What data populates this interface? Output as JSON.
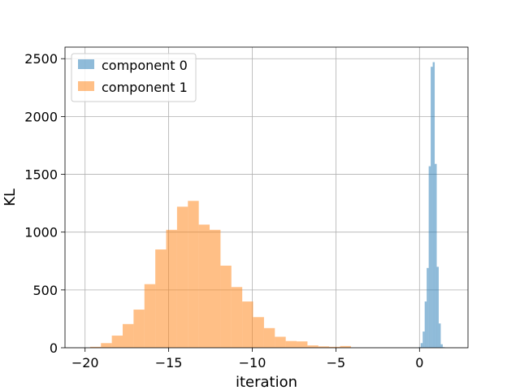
{
  "chart_data": {
    "type": "bar",
    "subtype": "histogram",
    "xlabel": "iteration",
    "ylabel": "KL",
    "xlim": [
      -21.2,
      2.9
    ],
    "ylim": [
      0,
      2600
    ],
    "xticks": [
      -20,
      -15,
      -10,
      -5,
      0
    ],
    "xtick_labels": [
      "−20",
      "−15",
      "−10",
      "−5",
      "0"
    ],
    "yticks": [
      0,
      500,
      1000,
      1500,
      2000,
      2500
    ],
    "ytick_labels": [
      "0",
      "500",
      "1000",
      "1500",
      "2000",
      "2500"
    ],
    "grid": true,
    "legend_position": "top-left",
    "series": [
      {
        "name": "component 0",
        "color": "#1f77b4",
        "alpha": 0.5,
        "bins": [
          {
            "x0": -0.05,
            "x1": 0.07,
            "count": 5
          },
          {
            "x0": 0.07,
            "x1": 0.19,
            "count": 40
          },
          {
            "x0": 0.19,
            "x1": 0.31,
            "count": 140
          },
          {
            "x0": 0.31,
            "x1": 0.43,
            "count": 400
          },
          {
            "x0": 0.43,
            "x1": 0.55,
            "count": 690
          },
          {
            "x0": 0.55,
            "x1": 0.67,
            "count": 1570
          },
          {
            "x0": 0.67,
            "x1": 0.79,
            "count": 2430
          },
          {
            "x0": 0.79,
            "x1": 0.91,
            "count": 2470
          },
          {
            "x0": 0.91,
            "x1": 1.03,
            "count": 1590
          },
          {
            "x0": 1.03,
            "x1": 1.15,
            "count": 700
          },
          {
            "x0": 1.15,
            "x1": 1.27,
            "count": 210
          },
          {
            "x0": 1.27,
            "x1": 1.39,
            "count": 30
          },
          {
            "x0": 1.39,
            "x1": 1.51,
            "count": 5
          }
        ]
      },
      {
        "name": "component 1",
        "color": "#ff7f0e",
        "alpha": 0.5,
        "bins": [
          {
            "x0": -19.7,
            "x1": -19.05,
            "count": 8
          },
          {
            "x0": -19.05,
            "x1": -18.4,
            "count": 40
          },
          {
            "x0": -18.4,
            "x1": -17.75,
            "count": 105
          },
          {
            "x0": -17.75,
            "x1": -17.1,
            "count": 205
          },
          {
            "x0": -17.1,
            "x1": -16.45,
            "count": 330
          },
          {
            "x0": -16.45,
            "x1": -15.8,
            "count": 550
          },
          {
            "x0": -15.8,
            "x1": -15.15,
            "count": 850
          },
          {
            "x0": -15.15,
            "x1": -14.5,
            "count": 1020
          },
          {
            "x0": -14.5,
            "x1": -13.85,
            "count": 1220
          },
          {
            "x0": -13.85,
            "x1": -13.2,
            "count": 1270
          },
          {
            "x0": -13.2,
            "x1": -12.55,
            "count": 1065
          },
          {
            "x0": -12.55,
            "x1": -11.9,
            "count": 1020
          },
          {
            "x0": -11.9,
            "x1": -11.25,
            "count": 710
          },
          {
            "x0": -11.25,
            "x1": -10.6,
            "count": 525
          },
          {
            "x0": -10.6,
            "x1": -9.95,
            "count": 400
          },
          {
            "x0": -9.95,
            "x1": -9.3,
            "count": 265
          },
          {
            "x0": -9.3,
            "x1": -8.65,
            "count": 170
          },
          {
            "x0": -8.65,
            "x1": -8.0,
            "count": 95
          },
          {
            "x0": -8.0,
            "x1": -7.35,
            "count": 58
          },
          {
            "x0": -7.35,
            "x1": -6.7,
            "count": 55
          },
          {
            "x0": -6.7,
            "x1": -6.05,
            "count": 20
          },
          {
            "x0": -6.05,
            "x1": -5.4,
            "count": 12
          },
          {
            "x0": -5.4,
            "x1": -4.75,
            "count": 8
          },
          {
            "x0": -4.75,
            "x1": -4.1,
            "count": 15
          }
        ]
      }
    ]
  }
}
